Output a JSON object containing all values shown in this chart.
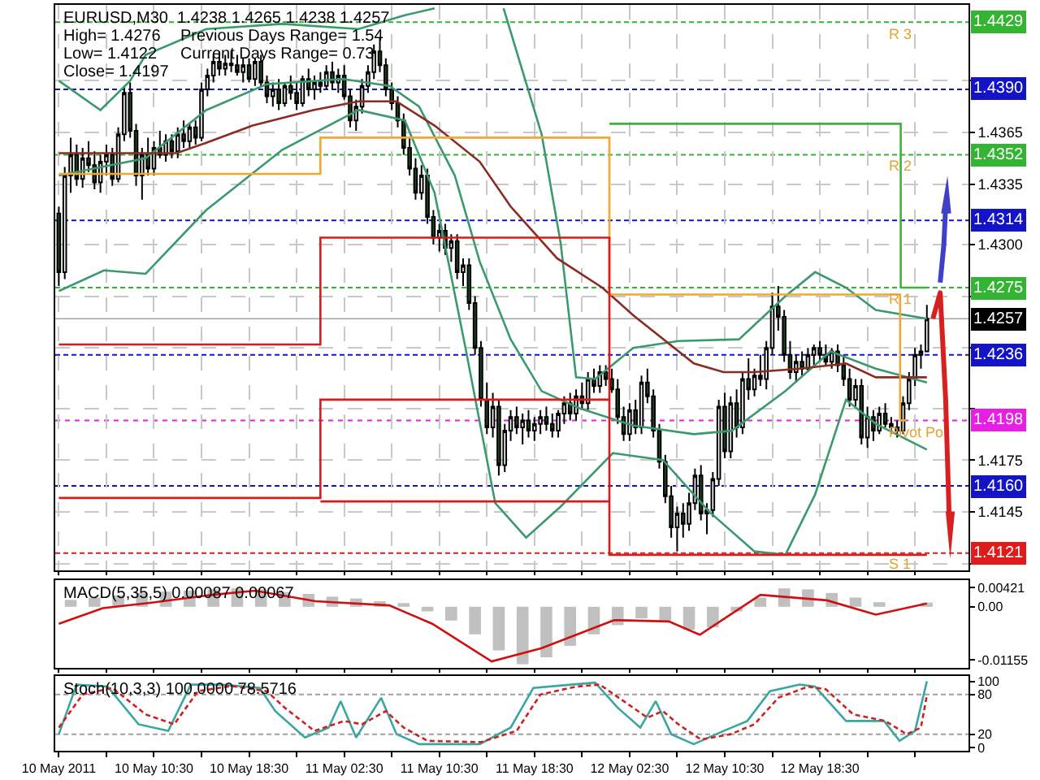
{
  "chart_data": [
    {
      "type": "candlestick",
      "title": "EURUSD,M30  1.4238 1.4265 1.4238 1.4257",
      "annotations": [
        "High= 1.4276",
        "Previous Days Range= 1.54",
        "Low= 1.4122",
        "Current Days Range= 0.73",
        "Close= 1.4197",
        {
          "text": "R 3",
          "x": "2011-05-13T00:00",
          "y": 1.4429
        },
        {
          "text": "R 2",
          "x": "2011-05-13T00:00",
          "y": 1.4352
        },
        {
          "text": "R 1",
          "x": "2011-05-13T00:00",
          "y": 1.4275
        },
        {
          "text": "Pivot Po",
          "x": "2011-05-13T00:00",
          "y": 1.4198
        },
        {
          "text": "S 1",
          "x": "2011-05-13T00:00",
          "y": 1.4121
        }
      ],
      "x": [
        "2011-05-10T02:30",
        "2011-05-10T03:00",
        "2011-05-10T03:30",
        "2011-05-10T04:00",
        "2011-05-10T04:30",
        "2011-05-10T05:00",
        "2011-05-10T05:30",
        "2011-05-10T06:00",
        "2011-05-10T06:30",
        "2011-05-10T07:00",
        "2011-05-10T07:30",
        "2011-05-10T08:00",
        "2011-05-10T08:30",
        "2011-05-10T09:00",
        "2011-05-10T09:30",
        "2011-05-10T10:00",
        "2011-05-10T10:30",
        "2011-05-10T11:00",
        "2011-05-10T11:30",
        "2011-05-10T12:00",
        "2011-05-10T12:30",
        "2011-05-10T13:00",
        "2011-05-10T13:30",
        "2011-05-10T14:00",
        "2011-05-10T14:30",
        "2011-05-10T15:00",
        "2011-05-10T15:30",
        "2011-05-10T16:00",
        "2011-05-10T16:30",
        "2011-05-10T17:00",
        "2011-05-10T17:30",
        "2011-05-10T18:00",
        "2011-05-10T18:30",
        "2011-05-10T19:00",
        "2011-05-10T19:30",
        "2011-05-10T20:00",
        "2011-05-10T20:30",
        "2011-05-10T21:00",
        "2011-05-10T21:30",
        "2011-05-10T22:00",
        "2011-05-10T22:30",
        "2011-05-10T23:00",
        "2011-05-10T23:30",
        "2011-05-11T00:00",
        "2011-05-11T00:30",
        "2011-05-11T01:00",
        "2011-05-11T01:30",
        "2011-05-11T02:00",
        "2011-05-11T02:30",
        "2011-05-11T03:00",
        "2011-05-11T03:30",
        "2011-05-11T04:00",
        "2011-05-11T04:30",
        "2011-05-11T05:00",
        "2011-05-11T05:30",
        "2011-05-11T06:00",
        "2011-05-11T06:30",
        "2011-05-11T07:00",
        "2011-05-11T07:30",
        "2011-05-11T08:00",
        "2011-05-11T08:30",
        "2011-05-11T09:00",
        "2011-05-11T09:30",
        "2011-05-11T10:00",
        "2011-05-11T10:30",
        "2011-05-11T11:00",
        "2011-05-11T11:30",
        "2011-05-11T12:00",
        "2011-05-11T12:30",
        "2011-05-11T13:00",
        "2011-05-11T13:30",
        "2011-05-11T14:00",
        "2011-05-11T14:30",
        "2011-05-11T15:00",
        "2011-05-11T15:30",
        "2011-05-11T16:00",
        "2011-05-11T16:30",
        "2011-05-11T17:00",
        "2011-05-11T17:30",
        "2011-05-11T18:00",
        "2011-05-11T18:30",
        "2011-05-11T19:00",
        "2011-05-11T19:30",
        "2011-05-11T20:00",
        "2011-05-11T20:30",
        "2011-05-11T21:00",
        "2011-05-11T21:30",
        "2011-05-11T22:00",
        "2011-05-11T22:30",
        "2011-05-11T23:00",
        "2011-05-11T23:30",
        "2011-05-12T00:00",
        "2011-05-12T00:30",
        "2011-05-12T01:00",
        "2011-05-12T01:30",
        "2011-05-12T02:00",
        "2011-05-12T02:30",
        "2011-05-12T03:00",
        "2011-05-12T03:30",
        "2011-05-12T04:00",
        "2011-05-12T04:30",
        "2011-05-12T05:00",
        "2011-05-12T05:30",
        "2011-05-12T06:00",
        "2011-05-12T06:30",
        "2011-05-12T07:00",
        "2011-05-12T07:30",
        "2011-05-12T08:00",
        "2011-05-12T08:30",
        "2011-05-12T09:00",
        "2011-05-12T09:30",
        "2011-05-12T10:00",
        "2011-05-12T10:30",
        "2011-05-12T11:00",
        "2011-05-12T11:30",
        "2011-05-12T12:00",
        "2011-05-12T12:30",
        "2011-05-12T13:00",
        "2011-05-12T13:30",
        "2011-05-12T14:00",
        "2011-05-12T14:30",
        "2011-05-12T15:00",
        "2011-05-12T15:30",
        "2011-05-12T16:00",
        "2011-05-12T16:30",
        "2011-05-12T17:00",
        "2011-05-12T17:30",
        "2011-05-12T18:00",
        "2011-05-12T18:30",
        "2011-05-12T19:00",
        "2011-05-12T19:30",
        "2011-05-12T20:00",
        "2011-05-12T20:30",
        "2011-05-12T21:00",
        "2011-05-12T21:30",
        "2011-05-12T22:00",
        "2011-05-12T22:30",
        "2011-05-12T23:00",
        "2011-05-12T23:30",
        "2011-05-13T00:00",
        "2011-05-13T00:30",
        "2011-05-13T01:00",
        "2011-05-13T01:30",
        "2011-05-13T02:00",
        "2011-05-13T02:30",
        "2011-05-13T03:00",
        "2011-05-13T03:30"
      ],
      "ohlc": [
        [
          1.4318,
          1.4322,
          1.4276,
          1.4284
        ],
        [
          1.4284,
          1.4345,
          1.428,
          1.434
        ],
        [
          1.434,
          1.4362,
          1.433,
          1.4352
        ],
        [
          1.4352,
          1.4358,
          1.4334,
          1.4338
        ],
        [
          1.4338,
          1.4356,
          1.4333,
          1.435
        ],
        [
          1.435,
          1.436,
          1.4342,
          1.4346
        ],
        [
          1.4346,
          1.4354,
          1.4332,
          1.4336
        ],
        [
          1.4336,
          1.4352,
          1.433,
          1.4348
        ],
        [
          1.4348,
          1.4358,
          1.434,
          1.4352
        ],
        [
          1.4352,
          1.4356,
          1.4334,
          1.4338
        ],
        [
          1.4338,
          1.4368,
          1.4336,
          1.4364
        ],
        [
          1.4364,
          1.4392,
          1.436,
          1.4388
        ],
        [
          1.4388,
          1.4394,
          1.4362,
          1.4366
        ],
        [
          1.4366,
          1.437,
          1.4334,
          1.434
        ],
        [
          1.434,
          1.4356,
          1.4326,
          1.4352
        ],
        [
          1.4352,
          1.4362,
          1.434,
          1.4344
        ],
        [
          1.4344,
          1.436,
          1.434,
          1.4356
        ],
        [
          1.4356,
          1.4366,
          1.435,
          1.4352
        ],
        [
          1.4352,
          1.4364,
          1.4348,
          1.436
        ],
        [
          1.436,
          1.4364,
          1.435,
          1.4354
        ],
        [
          1.4354,
          1.4368,
          1.435,
          1.4364
        ],
        [
          1.4364,
          1.4372,
          1.4356,
          1.436
        ],
        [
          1.436,
          1.437,
          1.4356,
          1.4368
        ],
        [
          1.4368,
          1.4372,
          1.4358,
          1.4362
        ],
        [
          1.4362,
          1.4394,
          1.436,
          1.439
        ],
        [
          1.439,
          1.4402,
          1.4386,
          1.4398
        ],
        [
          1.4398,
          1.441,
          1.4394,
          1.4406
        ],
        [
          1.4406,
          1.4412,
          1.4398,
          1.4402
        ],
        [
          1.4402,
          1.441,
          1.4398,
          1.4405
        ],
        [
          1.4405,
          1.4412,
          1.44,
          1.4404
        ],
        [
          1.4404,
          1.441,
          1.4398,
          1.44
        ],
        [
          1.44,
          1.4408,
          1.4394,
          1.4404
        ],
        [
          1.4404,
          1.4408,
          1.4394,
          1.4396
        ],
        [
          1.4396,
          1.4408,
          1.4392,
          1.4406
        ],
        [
          1.4406,
          1.441,
          1.4392,
          1.4394
        ],
        [
          1.4394,
          1.4398,
          1.4382,
          1.4386
        ],
        [
          1.4386,
          1.4394,
          1.438,
          1.439
        ],
        [
          1.439,
          1.4396,
          1.4378,
          1.4382
        ],
        [
          1.4382,
          1.4394,
          1.438,
          1.4392
        ],
        [
          1.4392,
          1.4398,
          1.4384,
          1.4388
        ],
        [
          1.4388,
          1.4394,
          1.4378,
          1.4382
        ],
        [
          1.4382,
          1.4398,
          1.438,
          1.4396
        ],
        [
          1.4396,
          1.4402,
          1.4386,
          1.439
        ],
        [
          1.439,
          1.4398,
          1.4384,
          1.4394
        ],
        [
          1.4394,
          1.44,
          1.4388,
          1.4392
        ],
        [
          1.4392,
          1.4404,
          1.439,
          1.44
        ],
        [
          1.44,
          1.4406,
          1.439,
          1.4394
        ],
        [
          1.4394,
          1.4402,
          1.4388,
          1.4398
        ],
        [
          1.4398,
          1.4404,
          1.4384,
          1.4386
        ],
        [
          1.4386,
          1.439,
          1.4368,
          1.4372
        ],
        [
          1.4372,
          1.4384,
          1.4366,
          1.438
        ],
        [
          1.438,
          1.4396,
          1.4376,
          1.4392
        ],
        [
          1.4392,
          1.4404,
          1.4388,
          1.44
        ],
        [
          1.44,
          1.4416,
          1.4396,
          1.4412
        ],
        [
          1.4412,
          1.442,
          1.44,
          1.4404
        ],
        [
          1.4404,
          1.4408,
          1.4386,
          1.439
        ],
        [
          1.439,
          1.4394,
          1.4378,
          1.4382
        ],
        [
          1.4382,
          1.4386,
          1.4368,
          1.4372
        ],
        [
          1.4372,
          1.4376,
          1.4352,
          1.4356
        ],
        [
          1.4356,
          1.4362,
          1.434,
          1.4344
        ],
        [
          1.4344,
          1.435,
          1.4326,
          1.433
        ],
        [
          1.433,
          1.4346,
          1.4326,
          1.434
        ],
        [
          1.434,
          1.4344,
          1.4312,
          1.4316
        ],
        [
          1.4316,
          1.432,
          1.43,
          1.4304
        ],
        [
          1.4304,
          1.4312,
          1.4296,
          1.4308
        ],
        [
          1.4308,
          1.4312,
          1.4294,
          1.4298
        ],
        [
          1.4298,
          1.4306,
          1.429,
          1.4302
        ],
        [
          1.4302,
          1.4306,
          1.428,
          1.4284
        ],
        [
          1.4284,
          1.4292,
          1.4276,
          1.4288
        ],
        [
          1.4288,
          1.4292,
          1.4262,
          1.4266
        ],
        [
          1.4266,
          1.427,
          1.4236,
          1.424
        ],
        [
          1.424,
          1.4244,
          1.4206,
          1.421
        ],
        [
          1.421,
          1.422,
          1.419,
          1.4194
        ],
        [
          1.4194,
          1.4214,
          1.4188,
          1.4206
        ],
        [
          1.4206,
          1.421,
          1.4166,
          1.4172
        ],
        [
          1.4172,
          1.4196,
          1.4168,
          1.4192
        ],
        [
          1.4192,
          1.4204,
          1.4186,
          1.42
        ],
        [
          1.42,
          1.4206,
          1.419,
          1.4194
        ],
        [
          1.4194,
          1.4202,
          1.4184,
          1.4198
        ],
        [
          1.4198,
          1.4204,
          1.4188,
          1.4192
        ],
        [
          1.4192,
          1.42,
          1.4186,
          1.4196
        ],
        [
          1.4196,
          1.4204,
          1.419,
          1.42
        ],
        [
          1.42,
          1.4206,
          1.4192,
          1.4196
        ],
        [
          1.4196,
          1.4202,
          1.4188,
          1.4192
        ],
        [
          1.4192,
          1.4204,
          1.4188,
          1.4202
        ],
        [
          1.4202,
          1.4212,
          1.4196,
          1.4208
        ],
        [
          1.4208,
          1.4214,
          1.4198,
          1.4202
        ],
        [
          1.4202,
          1.4216,
          1.4198,
          1.4212
        ],
        [
          1.4212,
          1.422,
          1.4204,
          1.4208
        ],
        [
          1.4208,
          1.4226,
          1.4204,
          1.4222
        ],
        [
          1.4222,
          1.4228,
          1.4214,
          1.4218
        ],
        [
          1.4218,
          1.423,
          1.4214,
          1.4226
        ],
        [
          1.4226,
          1.423,
          1.4218,
          1.4222
        ],
        [
          1.4222,
          1.4228,
          1.4214,
          1.4216
        ],
        [
          1.4216,
          1.4222,
          1.4196,
          1.42
        ],
        [
          1.42,
          1.4206,
          1.4186,
          1.419
        ],
        [
          1.419,
          1.4208,
          1.4186,
          1.4204
        ],
        [
          1.4204,
          1.421,
          1.419,
          1.4194
        ],
        [
          1.4194,
          1.4224,
          1.419,
          1.422
        ],
        [
          1.422,
          1.4228,
          1.4208,
          1.4212
        ],
        [
          1.4212,
          1.4216,
          1.4188,
          1.4192
        ],
        [
          1.4192,
          1.4196,
          1.417,
          1.4174
        ],
        [
          1.4174,
          1.4178,
          1.415,
          1.4154
        ],
        [
          1.4154,
          1.416,
          1.413,
          1.4136
        ],
        [
          1.4136,
          1.4148,
          1.4122,
          1.4144
        ],
        [
          1.4144,
          1.415,
          1.413,
          1.4138
        ],
        [
          1.4138,
          1.4156,
          1.4134,
          1.415
        ],
        [
          1.415,
          1.417,
          1.4146,
          1.4166
        ],
        [
          1.4166,
          1.4172,
          1.414,
          1.4144
        ],
        [
          1.4144,
          1.415,
          1.4132,
          1.4146
        ],
        [
          1.4146,
          1.4168,
          1.4142,
          1.4164
        ],
        [
          1.4164,
          1.421,
          1.416,
          1.4206
        ],
        [
          1.4206,
          1.4214,
          1.4176,
          1.418
        ],
        [
          1.418,
          1.4212,
          1.4176,
          1.4208
        ],
        [
          1.4208,
          1.4216,
          1.4188,
          1.4194
        ],
        [
          1.4194,
          1.4226,
          1.419,
          1.4222
        ],
        [
          1.4222,
          1.4234,
          1.421,
          1.4216
        ],
        [
          1.4216,
          1.4228,
          1.4212,
          1.4224
        ],
        [
          1.4224,
          1.4236,
          1.4218,
          1.4222
        ],
        [
          1.4222,
          1.4244,
          1.4216,
          1.424
        ],
        [
          1.424,
          1.4272,
          1.4236,
          1.4264
        ],
        [
          1.4264,
          1.4276,
          1.425,
          1.4258
        ],
        [
          1.4258,
          1.4262,
          1.4232,
          1.4236
        ],
        [
          1.4236,
          1.4244,
          1.4222,
          1.4226
        ],
        [
          1.4226,
          1.4236,
          1.422,
          1.4232
        ],
        [
          1.4232,
          1.4238,
          1.4224,
          1.4228
        ],
        [
          1.4228,
          1.424,
          1.4226,
          1.4236
        ],
        [
          1.4236,
          1.4242,
          1.423,
          1.424
        ],
        [
          1.424,
          1.4244,
          1.4232,
          1.4236
        ],
        [
          1.4236,
          1.4242,
          1.423,
          1.4232
        ],
        [
          1.4232,
          1.424,
          1.4228,
          1.4238
        ],
        [
          1.4238,
          1.4242,
          1.4226,
          1.423
        ],
        [
          1.423,
          1.4236,
          1.4218,
          1.4222
        ],
        [
          1.4222,
          1.4228,
          1.4206,
          1.421
        ],
        [
          1.421,
          1.4222,
          1.4206,
          1.4218
        ],
        [
          1.4218,
          1.4222,
          1.4184,
          1.4188
        ],
        [
          1.4188,
          1.4206,
          1.4182,
          1.42
        ],
        [
          1.42,
          1.4204,
          1.4186,
          1.4192
        ],
        [
          1.4192,
          1.4206,
          1.419,
          1.4202
        ],
        [
          1.4202,
          1.4208,
          1.4194,
          1.4196
        ],
        [
          1.4196,
          1.42,
          1.419,
          1.4194
        ],
        [
          1.4194,
          1.4198,
          1.4188,
          1.4192
        ],
        [
          1.4192,
          1.4212,
          1.419,
          1.4208
        ],
        [
          1.4208,
          1.4226,
          1.4204,
          1.4222
        ],
        [
          1.4222,
          1.424,
          1.4218,
          1.4236
        ],
        [
          1.4236,
          1.4242,
          1.4228,
          1.4238
        ],
        [
          1.4238,
          1.4265,
          1.4238,
          1.4257
        ]
      ],
      "series": [
        {
          "type": "line",
          "color": "#3a9a6e",
          "x": [
            "2011-05-10T02:30",
            "2011-05-10T06:00",
            "2011-05-10T08:30",
            "2011-05-10T09:48",
            "2011-05-10T14:54",
            "2011-05-10T21:18",
            "2011-05-11T03:42",
            "2011-05-11T07:36",
            "2011-05-11T10:06",
            "2011-05-11T13:00",
            "2011-05-11T15:54",
            "2011-05-11T19:06",
            "2011-05-11T20:42",
            "2011-05-11T22:00",
            "2011-05-11T23:36",
            "2011-05-12T02:48",
            "2011-05-12T06:36",
            "2011-05-12T11:42",
            "2011-05-12T15:36",
            "2011-05-12T18:06",
            "2011-05-12T20:42",
            "2011-05-12T23:12",
            "2011-05-13T03:30"
          ],
          "values": [
            1.4395,
            1.4378,
            1.4395,
            1.441,
            1.4425,
            1.4428,
            1.4425,
            1.4433,
            1.4437,
            null,
            1.4437,
            1.4364,
            1.4301,
            1.4223,
            1.4222,
            1.424,
            1.4244,
            1.4245,
            1.427,
            1.4284,
            1.4275,
            1.4262,
            1.4257
          ]
        },
        {
          "type": "line",
          "color": "#3a9a6e",
          "x": [
            "2011-05-10T02:30",
            "2011-05-10T09:48",
            "2011-05-10T14:54",
            "2011-05-10T20:00",
            "2011-05-11T02:24",
            "2011-05-11T06:18",
            "2011-05-11T08:48",
            "2011-05-11T11:48",
            "2011-05-11T13:54",
            "2011-05-11T16:30",
            "2011-05-11T19:06",
            "2011-05-11T22:18",
            "2011-05-12T02:48",
            "2011-05-12T07:54",
            "2011-05-12T11:06",
            "2011-05-12T15:36",
            "2011-05-12T19:24",
            "2011-05-12T23:12",
            "2011-05-13T03:30"
          ],
          "values": [
            1.434,
            1.435,
            1.4378,
            1.4393,
            1.4396,
            1.4392,
            1.438,
            1.434,
            1.429,
            1.4245,
            1.4215,
            1.4205,
            1.4195,
            1.419,
            1.4192,
            1.4215,
            1.4238,
            1.4228,
            1.422
          ]
        },
        {
          "type": "line",
          "color": "#3a9a6e",
          "x": [
            "2011-05-10T02:30",
            "2011-05-10T06:18",
            "2011-05-10T09:48",
            "2011-05-10T14:54",
            "2011-05-10T21:18",
            "2011-05-11T03:42",
            "2011-05-11T07:36",
            "2011-05-11T10:06",
            "2011-05-11T12:42",
            "2011-05-11T15:12",
            "2011-05-11T17:48",
            "2011-05-11T20:42",
            "2011-05-12T01:06",
            "2011-05-12T05:18",
            "2011-05-12T09:12",
            "2011-05-12T13:00",
            "2011-05-12T15:36",
            "2011-05-12T18:06",
            "2011-05-12T20:42",
            "2011-05-12T23:12",
            "2011-05-13T03:30"
          ],
          "values": [
            1.4273,
            1.4285,
            1.4283,
            1.432,
            1.4355,
            1.4378,
            1.4372,
            1.433,
            1.424,
            1.415,
            1.413,
            1.4148,
            1.4179,
            1.4175,
            1.4145,
            1.4122,
            1.412,
            1.4155,
            1.421,
            1.4196,
            1.4181
          ]
        },
        {
          "type": "line",
          "color": "#8b2b22",
          "x": [
            "2011-05-10T02:30",
            "2011-05-10T07:12",
            "2011-05-10T12:24",
            "2011-05-10T14:54",
            "2011-05-10T18:48",
            "2011-05-10T23:54",
            "2011-05-11T03:42",
            "2011-05-11T06:54",
            "2011-05-11T10:06",
            "2011-05-11T13:54",
            "2011-05-11T16:30",
            "2011-05-11T20:24",
            "2011-05-12T00:12",
            "2011-05-12T02:48",
            "2011-05-12T07:54",
            "2011-05-12T10:24",
            "2011-05-12T13:00",
            "2011-05-12T16:48",
            "2011-05-12T20:42",
            "2011-05-12T23:12",
            "2011-05-13T03:30"
          ],
          "values": [
            1.4353,
            1.4353,
            1.4353,
            1.4359,
            1.4369,
            1.4378,
            1.4383,
            1.4383,
            1.4369,
            1.4348,
            1.4322,
            1.4292,
            1.4275,
            1.4259,
            1.4231,
            1.4226,
            1.4226,
            1.4228,
            1.4231,
            1.4223,
            1.4223
          ]
        },
        {
          "type": "step",
          "color": "#f0a830",
          "x": [
            "2011-05-10T02:30",
            "2011-05-11T00:30",
            "2011-05-12T00:48",
            "2011-05-13T01:15",
            "2011-05-13T01:45"
          ],
          "values": [
            1.4341,
            1.4362,
            1.4271,
            1.4198,
            1.4198
          ]
        },
        {
          "type": "step",
          "color": "#d81b1b",
          "x": [
            "2011-05-10T02:30",
            "2011-05-11T00:30",
            "2011-05-12T00:48",
            "2011-05-13T03:30"
          ],
          "values": [
            1.4242,
            1.4304,
            1.412,
            1.412
          ]
        },
        {
          "type": "step",
          "color": "#d81b1b",
          "x": [
            "2011-05-10T02:30",
            "2011-05-11T00:30",
            "2011-05-12T00:48"
          ],
          "values": [
            1.4153,
            1.421,
            1.421
          ]
        },
        {
          "type": "step",
          "color": "#d81b1b",
          "x": [
            "2011-05-11T00:30",
            "2011-05-12T00:48"
          ],
          "values": [
            1.4151,
            1.4151
          ]
        },
        {
          "type": "step",
          "color": "#3cb43c",
          "x": [
            "2011-05-12T00:48",
            "2011-05-13T01:18",
            "2011-05-13T03:30"
          ],
          "values": [
            1.437,
            1.4275,
            1.4275
          ]
        }
      ],
      "ref_lines": [
        {
          "axis": "y",
          "value": 1.4429,
          "label": "1.4429",
          "color": "#33b533",
          "line_style": "dashed"
        },
        {
          "axis": "y",
          "value": 1.439,
          "label": "1.4390",
          "color": "#1313c8",
          "line_style": "dashed"
        },
        {
          "axis": "y",
          "value": 1.4352,
          "label": "1.4352",
          "color": "#33b533",
          "line_style": "dashed"
        },
        {
          "axis": "y",
          "value": 1.4314,
          "label": "1.4314",
          "color": "#1313c8",
          "line_style": "dashed"
        },
        {
          "axis": "y",
          "value": 1.4275,
          "label": "1.4275",
          "color": "#33b533",
          "line_style": "dashed"
        },
        {
          "axis": "y",
          "value": 1.4257,
          "label": "1.4257",
          "color": "#000000",
          "line_style": "solid"
        },
        {
          "axis": "y",
          "value": 1.4236,
          "label": "1.4236",
          "color": "#1313c8",
          "line_style": "dashed"
        },
        {
          "axis": "y",
          "value": 1.4198,
          "label": "1.4198",
          "color": "#e61ee6",
          "line_style": "dotted"
        },
        {
          "axis": "y",
          "value": 1.416,
          "label": "1.4160",
          "color": "#1313c8",
          "line_style": "dashed"
        },
        {
          "axis": "y",
          "value": 1.4121,
          "label": "1.4121",
          "color": "#e01b1b",
          "line_style": "dashed"
        }
      ],
      "xlim": [
        "2011-05-10T02:12",
        "2011-05-13T07:00"
      ],
      "xticks": [
        {
          "value": "2011-05-10T02:30",
          "label": null
        },
        {
          "value": "2011-05-10T06:30",
          "label": null
        },
        {
          "value": "2011-05-10T10:30",
          "label": null
        },
        {
          "value": "2011-05-10T14:30",
          "label": null
        },
        {
          "value": "2011-05-10T18:30",
          "label": null
        },
        {
          "value": "2011-05-10T22:30",
          "label": null
        },
        {
          "value": "2011-05-11T02:30",
          "label": null
        },
        {
          "value": "2011-05-11T06:30",
          "label": null
        },
        {
          "value": "2011-05-11T10:30",
          "label": null
        },
        {
          "value": "2011-05-11T14:30",
          "label": null
        },
        {
          "value": "2011-05-11T18:30",
          "label": null
        },
        {
          "value": "2011-05-11T22:30",
          "label": null
        },
        {
          "value": "2011-05-12T02:30",
          "label": null
        },
        {
          "value": "2011-05-12T06:30",
          "label": null
        },
        {
          "value": "2011-05-12T10:30",
          "label": null
        },
        {
          "value": "2011-05-12T14:30",
          "label": null
        },
        {
          "value": "2011-05-12T18:30",
          "label": null
        },
        {
          "value": "2011-05-12T22:30",
          "label": null
        },
        {
          "value": "2011-05-13T02:30",
          "label": null
        }
      ],
      "ylim": [
        1.4111,
        1.4439
      ],
      "yticks": [
        {
          "value": 1.4115,
          "label": null
        },
        1.4145,
        1.4175,
        {
          "value": 1.4205,
          "label": null
        },
        {
          "value": 1.424,
          "label": null
        },
        {
          "value": 1.427,
          "label": null
        },
        {
          "value": 1.43,
          "label": "1.4300"
        },
        1.4335,
        1.4365,
        {
          "value": 1.4395,
          "label": null
        }
      ],
      "grid": true,
      "tick_labels": "y"
    },
    {
      "type": "bar",
      "title": "MACD(5,35,5) 0.00087 0.00067",
      "color": "#c0c0c0",
      "x": [
        "2011-05-10T03:30",
        "2011-05-10T05:30",
        "2011-05-10T07:30",
        "2011-05-10T09:30",
        "2011-05-10T11:30",
        "2011-05-10T13:30",
        "2011-05-10T15:30",
        "2011-05-10T17:30",
        "2011-05-10T19:30",
        "2011-05-10T21:30",
        "2011-05-10T23:30",
        "2011-05-11T01:30",
        "2011-05-11T03:30",
        "2011-05-11T05:30",
        "2011-05-11T07:30",
        "2011-05-11T09:30",
        "2011-05-11T11:30",
        "2011-05-11T13:30",
        "2011-05-11T15:30",
        "2011-05-11T17:30",
        "2011-05-11T19:30",
        "2011-05-11T21:30",
        "2011-05-11T23:30",
        "2011-05-12T01:30",
        "2011-05-12T03:30",
        "2011-05-12T05:30",
        "2011-05-12T07:30",
        "2011-05-12T09:30",
        "2011-05-12T11:30",
        "2011-05-12T13:30",
        "2011-05-12T15:30",
        "2011-05-12T17:30",
        "2011-05-12T19:30",
        "2011-05-12T21:30",
        "2011-05-12T23:30",
        "2011-05-13T01:30",
        "2011-05-13T03:30"
      ],
      "values": [
        0.0015,
        0.002,
        0.0025,
        0.003,
        0.0033,
        0.0035,
        0.0038,
        0.004,
        0.0038,
        0.0032,
        0.0028,
        0.0022,
        0.0018,
        0.0012,
        0.0008,
        -0.001,
        -0.003,
        -0.006,
        -0.0095,
        -0.0125,
        -0.011,
        -0.0085,
        -0.006,
        -0.004,
        -0.0025,
        -0.003,
        -0.005,
        -0.0045,
        -0.001,
        0.002,
        0.004,
        0.0038,
        0.003,
        0.002,
        0.001,
        null,
        0.0009
      ],
      "series": [
        {
          "type": "line",
          "color": "#d01010",
          "x": [
            "2011-05-10T02:30",
            "2011-05-10T06:12",
            "2011-05-10T10:18",
            "2011-05-10T15:24",
            "2011-05-10T19:00",
            "2011-05-11T00:06",
            "2011-05-11T06:18",
            "2011-05-11T09:54",
            "2011-05-11T14:54",
            "2011-05-11T19:06",
            "2011-05-12T01:12",
            "2011-05-12T05:48",
            "2011-05-12T08:24",
            "2011-05-12T13:30",
            "2011-05-12T19:06",
            "2011-05-12T23:12",
            "2011-05-13T03:30"
          ],
          "values": [
            -0.0037,
            -0.0003,
            0.0009,
            0.0026,
            0.0035,
            0.0012,
            0.0003,
            -0.0037,
            -0.0119,
            -0.009,
            -0.0029,
            -0.0032,
            -0.0061,
            0.0026,
            0.0014,
            -0.0017,
            0.0007
          ]
        }
      ],
      "xlim": [
        "2011-05-10T02:12",
        "2011-05-13T07:00"
      ],
      "xticks": [
        {
          "value": "2011-05-10T02:30",
          "label": null
        },
        {
          "value": "2011-05-10T06:30",
          "label": null
        },
        {
          "value": "2011-05-10T10:30",
          "label": null
        },
        {
          "value": "2011-05-10T14:30",
          "label": null
        },
        {
          "value": "2011-05-10T18:30",
          "label": null
        },
        {
          "value": "2011-05-10T22:30",
          "label": null
        },
        {
          "value": "2011-05-11T02:30",
          "label": null
        },
        {
          "value": "2011-05-11T06:30",
          "label": null
        },
        {
          "value": "2011-05-11T10:30",
          "label": null
        },
        {
          "value": "2011-05-11T14:30",
          "label": null
        },
        {
          "value": "2011-05-11T18:30",
          "label": null
        },
        {
          "value": "2011-05-11T22:30",
          "label": null
        },
        {
          "value": "2011-05-12T02:30",
          "label": null
        },
        {
          "value": "2011-05-12T06:30",
          "label": null
        },
        {
          "value": "2011-05-12T10:30",
          "label": null
        },
        {
          "value": "2011-05-12T14:30",
          "label": null
        },
        {
          "value": "2011-05-12T18:30",
          "label": null
        },
        {
          "value": "2011-05-12T22:30",
          "label": null
        },
        {
          "value": "2011-05-13T02:30",
          "label": null
        }
      ],
      "ylim": [
        -0.0133,
        0.0058
      ],
      "yticks": [
        {
          "value": -0.01155,
          "label": "-0.01155"
        },
        {
          "value": 0,
          "label": "0.00"
        },
        0.00421
      ],
      "tick_labels": "y"
    },
    {
      "type": "line",
      "title": "Stoch(10,3,3) 100.0000 78.5716",
      "series": [
        {
          "color": "#3aa6a0",
          "x": [
            "2011-05-10T02:30",
            "2011-05-10T04:00",
            "2011-05-10T06:36",
            "2011-05-10T09:12",
            "2011-05-10T11:42",
            "2011-05-10T13:36",
            "2011-05-10T16:12",
            "2011-05-10T19:24",
            "2011-05-10T20:42",
            "2011-05-10T23:12",
            "2011-05-11T01:12",
            "2011-05-11T02:12",
            "2011-05-11T03:30",
            "2011-05-11T05:36",
            "2011-05-11T06:54",
            "2011-05-11T08:48",
            "2011-05-11T13:54",
            "2011-05-11T16:30",
            "2011-05-11T18:24",
            "2011-05-11T21:36",
            "2011-05-11T23:36",
            "2011-05-12T01:30",
            "2011-05-12T03:24",
            "2011-05-12T04:42",
            "2011-05-12T06:00",
            "2011-05-12T07:54",
            "2011-05-12T10:24",
            "2011-05-12T12:24",
            "2011-05-12T14:18",
            "2011-05-12T16:48",
            "2011-05-12T18:06",
            "2011-05-12T20:42",
            "2011-05-12T23:54",
            "2011-05-13T01:12",
            "2011-05-13T02:30",
            "2011-05-13T03:30"
          ],
          "values": [
            20,
            95,
            92,
            35,
            25,
            95,
            95,
            90,
            55,
            15,
            30,
            70,
            15,
            75,
            20,
            5,
            5,
            30,
            90,
            95,
            98,
            60,
            30,
            70,
            20,
            5,
            25,
            40,
            85,
            95,
            92,
            40,
            40,
            10,
            25,
            100
          ]
        },
        {
          "color": "#d02020",
          "line_style": "dashed",
          "x": [
            "2011-05-10T02:30",
            "2011-05-10T04:30",
            "2011-05-10T07:00",
            "2011-05-10T09:48",
            "2011-05-10T12:12",
            "2011-05-10T14:12",
            "2011-05-10T17:00",
            "2011-05-10T20:00",
            "2011-05-10T21:30",
            "2011-05-11T00:00",
            "2011-05-11T02:30",
            "2011-05-11T04:00",
            "2011-05-11T06:00",
            "2011-05-11T07:30",
            "2011-05-11T09:30",
            "2011-05-11T14:00",
            "2011-05-11T17:00",
            "2011-05-11T19:00",
            "2011-05-11T22:00",
            "2011-05-12T00:00",
            "2011-05-12T02:00",
            "2011-05-12T04:00",
            "2011-05-12T05:18",
            "2011-05-12T06:36",
            "2011-05-12T08:30",
            "2011-05-12T11:00",
            "2011-05-12T13:00",
            "2011-05-12T15:00",
            "2011-05-12T17:30",
            "2011-05-12T19:00",
            "2011-05-12T21:18",
            "2011-05-13T00:00",
            "2011-05-13T01:48",
            "2011-05-13T03:00",
            "2011-05-13T03:30"
          ],
          "values": [
            30,
            80,
            90,
            50,
            35,
            85,
            93,
            85,
            60,
            25,
            40,
            35,
            55,
            30,
            10,
            8,
            25,
            80,
            92,
            95,
            70,
            45,
            55,
            35,
            12,
            20,
            35,
            75,
            92,
            88,
            50,
            40,
            20,
            30,
            79
          ]
        }
      ],
      "ref_lines": [
        {
          "axis": "y",
          "value": 20,
          "color": "#a0a0a0",
          "line_style": "dashed"
        },
        {
          "axis": "y",
          "value": 80,
          "color": "#a0a0a0",
          "line_style": "dashed"
        }
      ],
      "xlim": [
        "2011-05-10T02:12",
        "2011-05-13T07:00"
      ],
      "xticks": [
        {
          "value": "2011-05-10T02:30",
          "label": "10 May 2011"
        },
        {
          "value": "2011-05-10T06:30",
          "label": null
        },
        {
          "value": "2011-05-10T10:30",
          "label": "10 May 10:30"
        },
        {
          "value": "2011-05-10T14:30",
          "label": null
        },
        {
          "value": "2011-05-10T18:30",
          "label": "10 May 18:30"
        },
        {
          "value": "2011-05-10T22:30",
          "label": null
        },
        {
          "value": "2011-05-11T02:30",
          "label": "11 May 02:30"
        },
        {
          "value": "2011-05-11T06:30",
          "label": null
        },
        {
          "value": "2011-05-11T10:30",
          "label": "11 May 10:30"
        },
        {
          "value": "2011-05-11T14:30",
          "label": null
        },
        {
          "value": "2011-05-11T18:30",
          "label": "11 May 18:30"
        },
        {
          "value": "2011-05-11T22:30",
          "label": null
        },
        {
          "value": "2011-05-12T02:30",
          "label": "12 May 02:30"
        },
        {
          "value": "2011-05-12T06:30",
          "label": null
        },
        {
          "value": "2011-05-12T10:30",
          "label": "12 May 10:30"
        },
        {
          "value": "2011-05-12T14:30",
          "label": null
        },
        {
          "value": "2011-05-12T18:30",
          "label": "12 May 18:30"
        },
        {
          "value": "2011-05-12T22:30",
          "label": null
        },
        {
          "value": "2011-05-13T02:30",
          "label": null
        }
      ],
      "ylim": [
        -5,
        108
      ],
      "yticks": [
        0,
        20,
        80,
        100
      ]
    }
  ]
}
